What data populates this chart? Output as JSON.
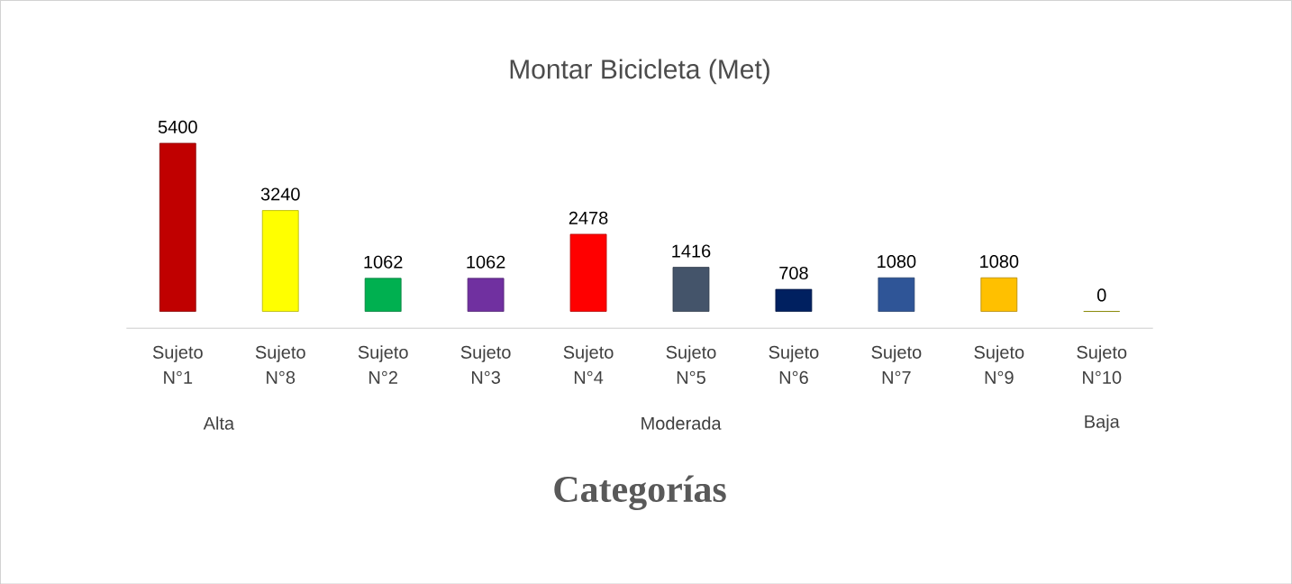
{
  "chart_data": {
    "type": "bar",
    "title": "Montar Bicicleta (Met)",
    "xlabel": "Categorías",
    "categories": [
      "Sujeto N°1",
      "Sujeto N°8",
      "Sujeto N°2",
      "Sujeto N°3",
      "Sujeto N°4",
      "Sujeto N°5",
      "Sujeto N°6",
      "Sujeto N°7",
      "Sujeto N°9",
      "Sujeto N°10"
    ],
    "values": [
      5400,
      3240,
      1062,
      1062,
      2478,
      1416,
      708,
      1080,
      1080,
      0
    ],
    "colors": [
      "#c00000",
      "#ffff00",
      "#00b050",
      "#7030a0",
      "#ff0000",
      "#44546a",
      "#002060",
      "#2f5597",
      "#ffc000",
      "#c0c000"
    ],
    "data_labels": true,
    "annotations": [
      "Alta",
      "Moderada",
      "Baja"
    ]
  }
}
